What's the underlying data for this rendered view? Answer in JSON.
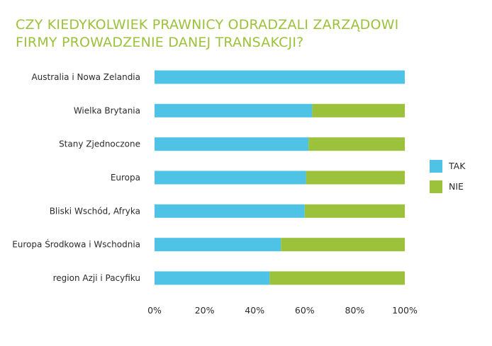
{
  "chart_data": {
    "type": "bar",
    "orientation": "horizontal",
    "stacked": true,
    "percent_stacked": true,
    "title": "CZY KIEDYKOLWIEK PRAWNICY ODRADZALI ZARZĄDOWI FIRMY PROWADZENIE DANEJ TRANSAKCJI?",
    "title_lines": [
      "CZY KIEDYKOLWIEK PRAWNICY ODRADZALI ZARZĄDOWI",
      "FIRMY PROWADZENIE DANEJ TRANSAKCJI?"
    ],
    "categories": [
      "Australia i Nowa Zelandia",
      "Wielka Brytania",
      "Stany Zjednoczone",
      "Europa",
      "Bliski Wschód, Afryka",
      "Europa Środkowa i Wschodnia",
      "region Azji i Pacyfiku"
    ],
    "series": [
      {
        "name": "TAK",
        "color": "#4fc3e6",
        "values": [
          100,
          63,
          61.5,
          60.5,
          60,
          50.5,
          46
        ]
      },
      {
        "name": "NIE",
        "color": "#9cc13b",
        "values": [
          0,
          37,
          38.5,
          39.5,
          40,
          49.5,
          54
        ]
      }
    ],
    "xlim": [
      0,
      100
    ],
    "xticks": [
      "0%",
      "20%",
      "40%",
      "60%",
      "80%",
      "100%"
    ],
    "grid": false,
    "legend_position": "right"
  }
}
